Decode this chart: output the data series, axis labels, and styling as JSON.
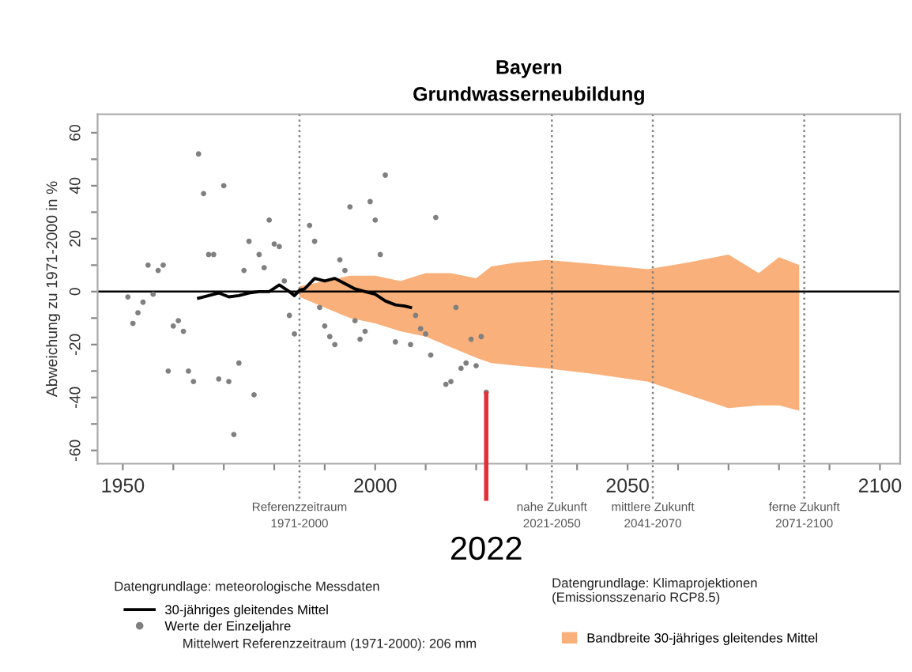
{
  "chart_data": {
    "type": "scatter",
    "title": "Bayern",
    "subtitle": "Grundwasserneubildung",
    "ylabel": "Abweichung zu 1971-2000 in %",
    "xlim": [
      1945,
      2104
    ],
    "ylim": [
      -65,
      67
    ],
    "xticks": [
      1950,
      {
        "value": 1960,
        "label": null
      },
      {
        "value": 1970,
        "label": null
      },
      {
        "value": 1980,
        "label": null
      },
      {
        "value": 1990,
        "label": null
      },
      2000,
      {
        "value": 2010,
        "label": null
      },
      {
        "value": 2020,
        "label": null
      },
      {
        "value": 2030,
        "label": null
      },
      {
        "value": 2040,
        "label": null
      },
      2050,
      {
        "value": 2060,
        "label": null
      },
      {
        "value": 2070,
        "label": null
      },
      {
        "value": 2080,
        "label": null
      },
      {
        "value": 2090,
        "label": null
      },
      2100
    ],
    "yticks": [
      -60,
      {
        "value": -50,
        "label": null
      },
      -40,
      {
        "value": -30,
        "label": null
      },
      -20,
      {
        "value": -10,
        "label": null
      },
      0,
      {
        "value": 10,
        "label": null
      },
      20,
      {
        "value": 30,
        "label": null
      },
      40,
      {
        "value": 50,
        "label": null
      },
      60
    ],
    "grid": false,
    "legend": "bottom",
    "series": [
      {
        "type": "area",
        "name": "Bandbreite 30-jähriges gleitendes Mittel",
        "color": "#f9b07a",
        "x": [
          1985,
          1990,
          1995,
          2000,
          2005,
          2010,
          2015,
          2020,
          2023,
          2028,
          2034,
          2043,
          2054,
          2062,
          2070,
          2076,
          2080,
          2084
        ],
        "values": [
          2,
          4,
          6,
          6,
          4,
          7,
          7,
          5,
          9.5,
          11,
          12,
          10.5,
          8.5,
          11,
          14,
          7,
          13,
          10
        ]
      },
      {
        "type": "area",
        "color": "#f9b07a",
        "x": [
          1985,
          1990,
          1995,
          2000,
          2005,
          2010,
          2015,
          2020,
          2023,
          2028,
          2034,
          2043,
          2054,
          2062,
          2070,
          2076,
          2080,
          2084
        ],
        "values": [
          -2,
          -6,
          -10,
          -12,
          -15,
          -17,
          -21,
          -25,
          -27,
          -28,
          -29,
          -31,
          -34,
          -39,
          -44,
          -43,
          -43,
          -45
        ]
      },
      {
        "type": "line",
        "name": "30-jähriges gleitendes Mittel",
        "color": "#000000",
        "marker": "none",
        "line_style": "solid",
        "x": [
          1965,
          1967,
          1969,
          1971,
          1973,
          1975,
          1977,
          1979,
          1981,
          1983,
          1984,
          1985,
          1986,
          1988,
          1990,
          1992,
          1994,
          1996,
          1998,
          2000,
          2002,
          2004,
          2006,
          2007
        ],
        "values": [
          -2.5,
          -1.5,
          -0.5,
          -2,
          -1.5,
          -0.5,
          0,
          0,
          2.5,
          0,
          -1.5,
          0.5,
          1,
          5,
          4,
          5,
          3,
          1,
          0,
          -1,
          -3.5,
          -5,
          -5.5,
          -6
        ]
      },
      {
        "name": "Werte der Einzeljahre",
        "color": "#808080",
        "marker": "circle",
        "x": [
          1951,
          1952,
          1953,
          1954,
          1955,
          1956,
          1957,
          1958,
          1959,
          1960,
          1961,
          1962,
          1963,
          1964,
          1965,
          1966,
          1967,
          1968,
          1969,
          1970,
          1971,
          1972,
          1973,
          1974,
          1975,
          1976,
          1977,
          1978,
          1979,
          1980,
          1981,
          1982,
          1983,
          1984,
          1987,
          1988,
          1989,
          1990,
          1991,
          1992,
          1993,
          1994,
          1995,
          1996,
          1997,
          1998,
          1999,
          2000,
          2001,
          2002,
          2004,
          2007,
          2008,
          2009,
          2010,
          2011,
          2012,
          2014,
          2015,
          2016,
          2017,
          2018,
          2019,
          2020,
          2021,
          2022
        ],
        "values": [
          -2,
          -12,
          -8,
          -4,
          10,
          -1,
          8,
          10,
          -30,
          -13,
          -11,
          -15,
          -30,
          -34,
          52,
          37,
          14,
          14,
          -33,
          40,
          -34,
          -54,
          -27,
          8,
          19,
          -39,
          14,
          9,
          27,
          18,
          17,
          4,
          -9,
          -16,
          25,
          19,
          -6,
          -13,
          -17,
          -20,
          12,
          8,
          32,
          -11,
          -18,
          -15,
          34,
          27,
          14,
          44,
          -19,
          -20,
          -9,
          -14,
          -16,
          -24,
          28,
          -35,
          -34,
          -6,
          -29,
          -27,
          -18,
          -28,
          -17,
          -38
        ]
      }
    ],
    "ref_lines": [
      {
        "axis": "y",
        "value": 0,
        "color": "#000000",
        "line_style": "solid"
      },
      {
        "axis": "x",
        "value": 1985,
        "label": "Referenzzeitraum\n1971-2000",
        "color": "#808080",
        "line_style": "dotted"
      },
      {
        "axis": "x",
        "value": 2035,
        "label": "nahe Zukunft\n2021-2050",
        "color": "#808080",
        "line_style": "dotted"
      },
      {
        "axis": "x",
        "value": 2055,
        "label": "mittlere Zukunft\n2041-2070",
        "color": "#808080",
        "line_style": "dotted"
      },
      {
        "axis": "x",
        "value": 2085,
        "label": "ferne Zukunft\n2071-2100",
        "color": "#808080",
        "line_style": "dotted"
      },
      {
        "axis": "x",
        "value": 2022,
        "label": "2022",
        "color": "#e0303a",
        "line_style": "solid"
      }
    ],
    "annotations": [
      "Datengrundlage: meteorologische Messdaten",
      "Mittelwert Referenzzeitraum (1971-2000): 206 mm",
      "Datengrundlage: Klimaprojektionen\n(Emissionsszenario RCP8.5)"
    ]
  }
}
